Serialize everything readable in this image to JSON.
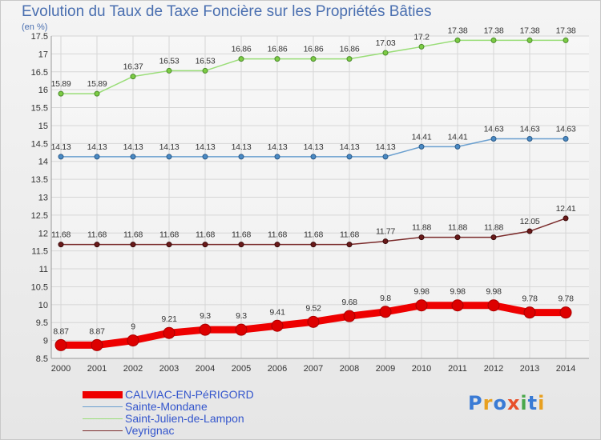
{
  "title": "Evolution du Taux de Taxe Foncière sur les Propriétés Bâties",
  "unit_label": "(en %)",
  "logo": {
    "text": "Proxiti",
    "letters": [
      "P",
      "r",
      "o",
      "x",
      "i",
      "t",
      "i"
    ],
    "colors": [
      "#3a7bd5",
      "#e8a020",
      "#3a7bd5",
      "#e8502a",
      "#4aa84a",
      "#3a7bd5",
      "#e8a020"
    ]
  },
  "chart_data": {
    "type": "line",
    "x": [
      "2000",
      "2001",
      "2002",
      "2003",
      "2004",
      "2005",
      "2006",
      "2007",
      "2008",
      "2009",
      "2010",
      "2011",
      "2012",
      "2013",
      "2014"
    ],
    "ylim": [
      8.5,
      17.5
    ],
    "yticks": [
      "8.5",
      "9",
      "9.5",
      "10",
      "10.5",
      "11",
      "11.5",
      "12",
      "12.5",
      "13",
      "13.5",
      "14",
      "14.5",
      "15",
      "15.5",
      "16",
      "16.5",
      "17",
      "17.5"
    ],
    "grid": true,
    "legend_position": "bottom-left",
    "series": [
      {
        "name": "CALVIAC-EN-PéRIGORD",
        "color": "#ee0000",
        "values": [
          8.87,
          8.87,
          9,
          9.21,
          9.3,
          9.3,
          9.41,
          9.52,
          9.68,
          9.8,
          9.98,
          9.98,
          9.98,
          9.78,
          9.78
        ],
        "labels": [
          "8.87",
          "8.87",
          "9",
          "9.21",
          "9.3",
          "9.3",
          "9.41",
          "9.52",
          "9.68",
          "9.8",
          "9.98",
          "9.98",
          "9.98",
          "9.78",
          "9.78"
        ]
      },
      {
        "name": "Sainte-Mondane",
        "color": "#6a9fcf",
        "values": [
          14.13,
          14.13,
          14.13,
          14.13,
          14.13,
          14.13,
          14.13,
          14.13,
          14.13,
          14.13,
          14.41,
          14.41,
          14.63,
          14.63,
          14.63
        ],
        "labels": [
          "14.13",
          "14.13",
          "14.13",
          "14.13",
          "14.13",
          "14.13",
          "14.13",
          "14.13",
          "14.13",
          "14.13",
          "14.41",
          "14.41",
          "14.63",
          "14.63",
          "14.63"
        ]
      },
      {
        "name": "Saint-Julien-de-Lampon",
        "color": "#99dd77",
        "values": [
          15.89,
          15.89,
          16.37,
          16.53,
          16.53,
          16.86,
          16.86,
          16.86,
          16.86,
          17.03,
          17.2,
          17.38,
          17.38,
          17.38,
          17.38
        ],
        "labels": [
          "15.89",
          "15.89",
          "16.37",
          "16.53",
          "16.53",
          "16.86",
          "16.86",
          "16.86",
          "16.86",
          "17.03",
          "17.2",
          "17.38",
          "17.38",
          "17.38",
          "17.38"
        ]
      },
      {
        "name": "Veyrignac",
        "color": "#7a2a2a",
        "values": [
          11.68,
          11.68,
          11.68,
          11.68,
          11.68,
          11.68,
          11.68,
          11.68,
          11.68,
          11.77,
          11.88,
          11.88,
          11.88,
          12.05,
          12.41
        ],
        "labels": [
          "11.68",
          "11.68",
          "11.68",
          "11.68",
          "11.68",
          "11.68",
          "11.68",
          "11.68",
          "11.68",
          "11.77",
          "11.88",
          "11.88",
          "11.88",
          "12.05",
          "12.41"
        ]
      }
    ]
  }
}
